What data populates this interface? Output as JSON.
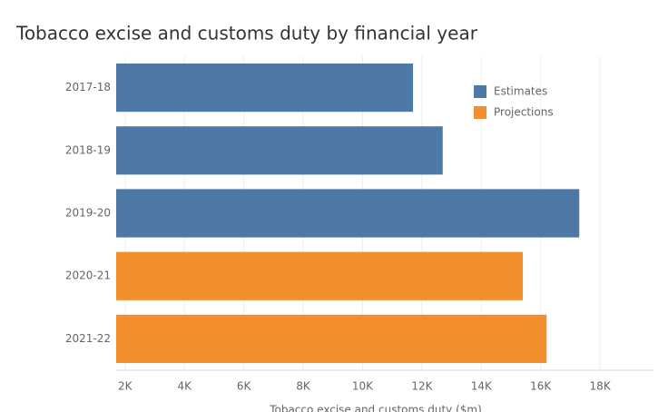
{
  "chart_data": {
    "type": "bar",
    "orientation": "horizontal",
    "title": "Tobacco excise and customs duty by financial year",
    "xlabel": "Tobacco excise and customs duty ($m)",
    "categories": [
      "2017-18",
      "2018-19",
      "2019-20",
      "2020-21",
      "2021-22"
    ],
    "series": [
      {
        "name": "Estimates",
        "color": "#4e79a7",
        "values": [
          11700,
          12700,
          17300,
          null,
          null
        ]
      },
      {
        "name": "Projections",
        "color": "#f28e2b",
        "values": [
          null,
          null,
          null,
          15400,
          16200
        ]
      }
    ],
    "xlim": [
      1700,
      19800
    ],
    "xticks": [
      {
        "value": 2000,
        "label": "2K"
      },
      {
        "value": 4000,
        "label": "4K"
      },
      {
        "value": 6000,
        "label": "6K"
      },
      {
        "value": 8000,
        "label": "8K"
      },
      {
        "value": 10000,
        "label": "10K"
      },
      {
        "value": 12000,
        "label": "12K"
      },
      {
        "value": 14000,
        "label": "14K"
      },
      {
        "value": 16000,
        "label": "16K"
      },
      {
        "value": 18000,
        "label": "18K"
      }
    ],
    "grid": true,
    "legend": "top-right"
  }
}
